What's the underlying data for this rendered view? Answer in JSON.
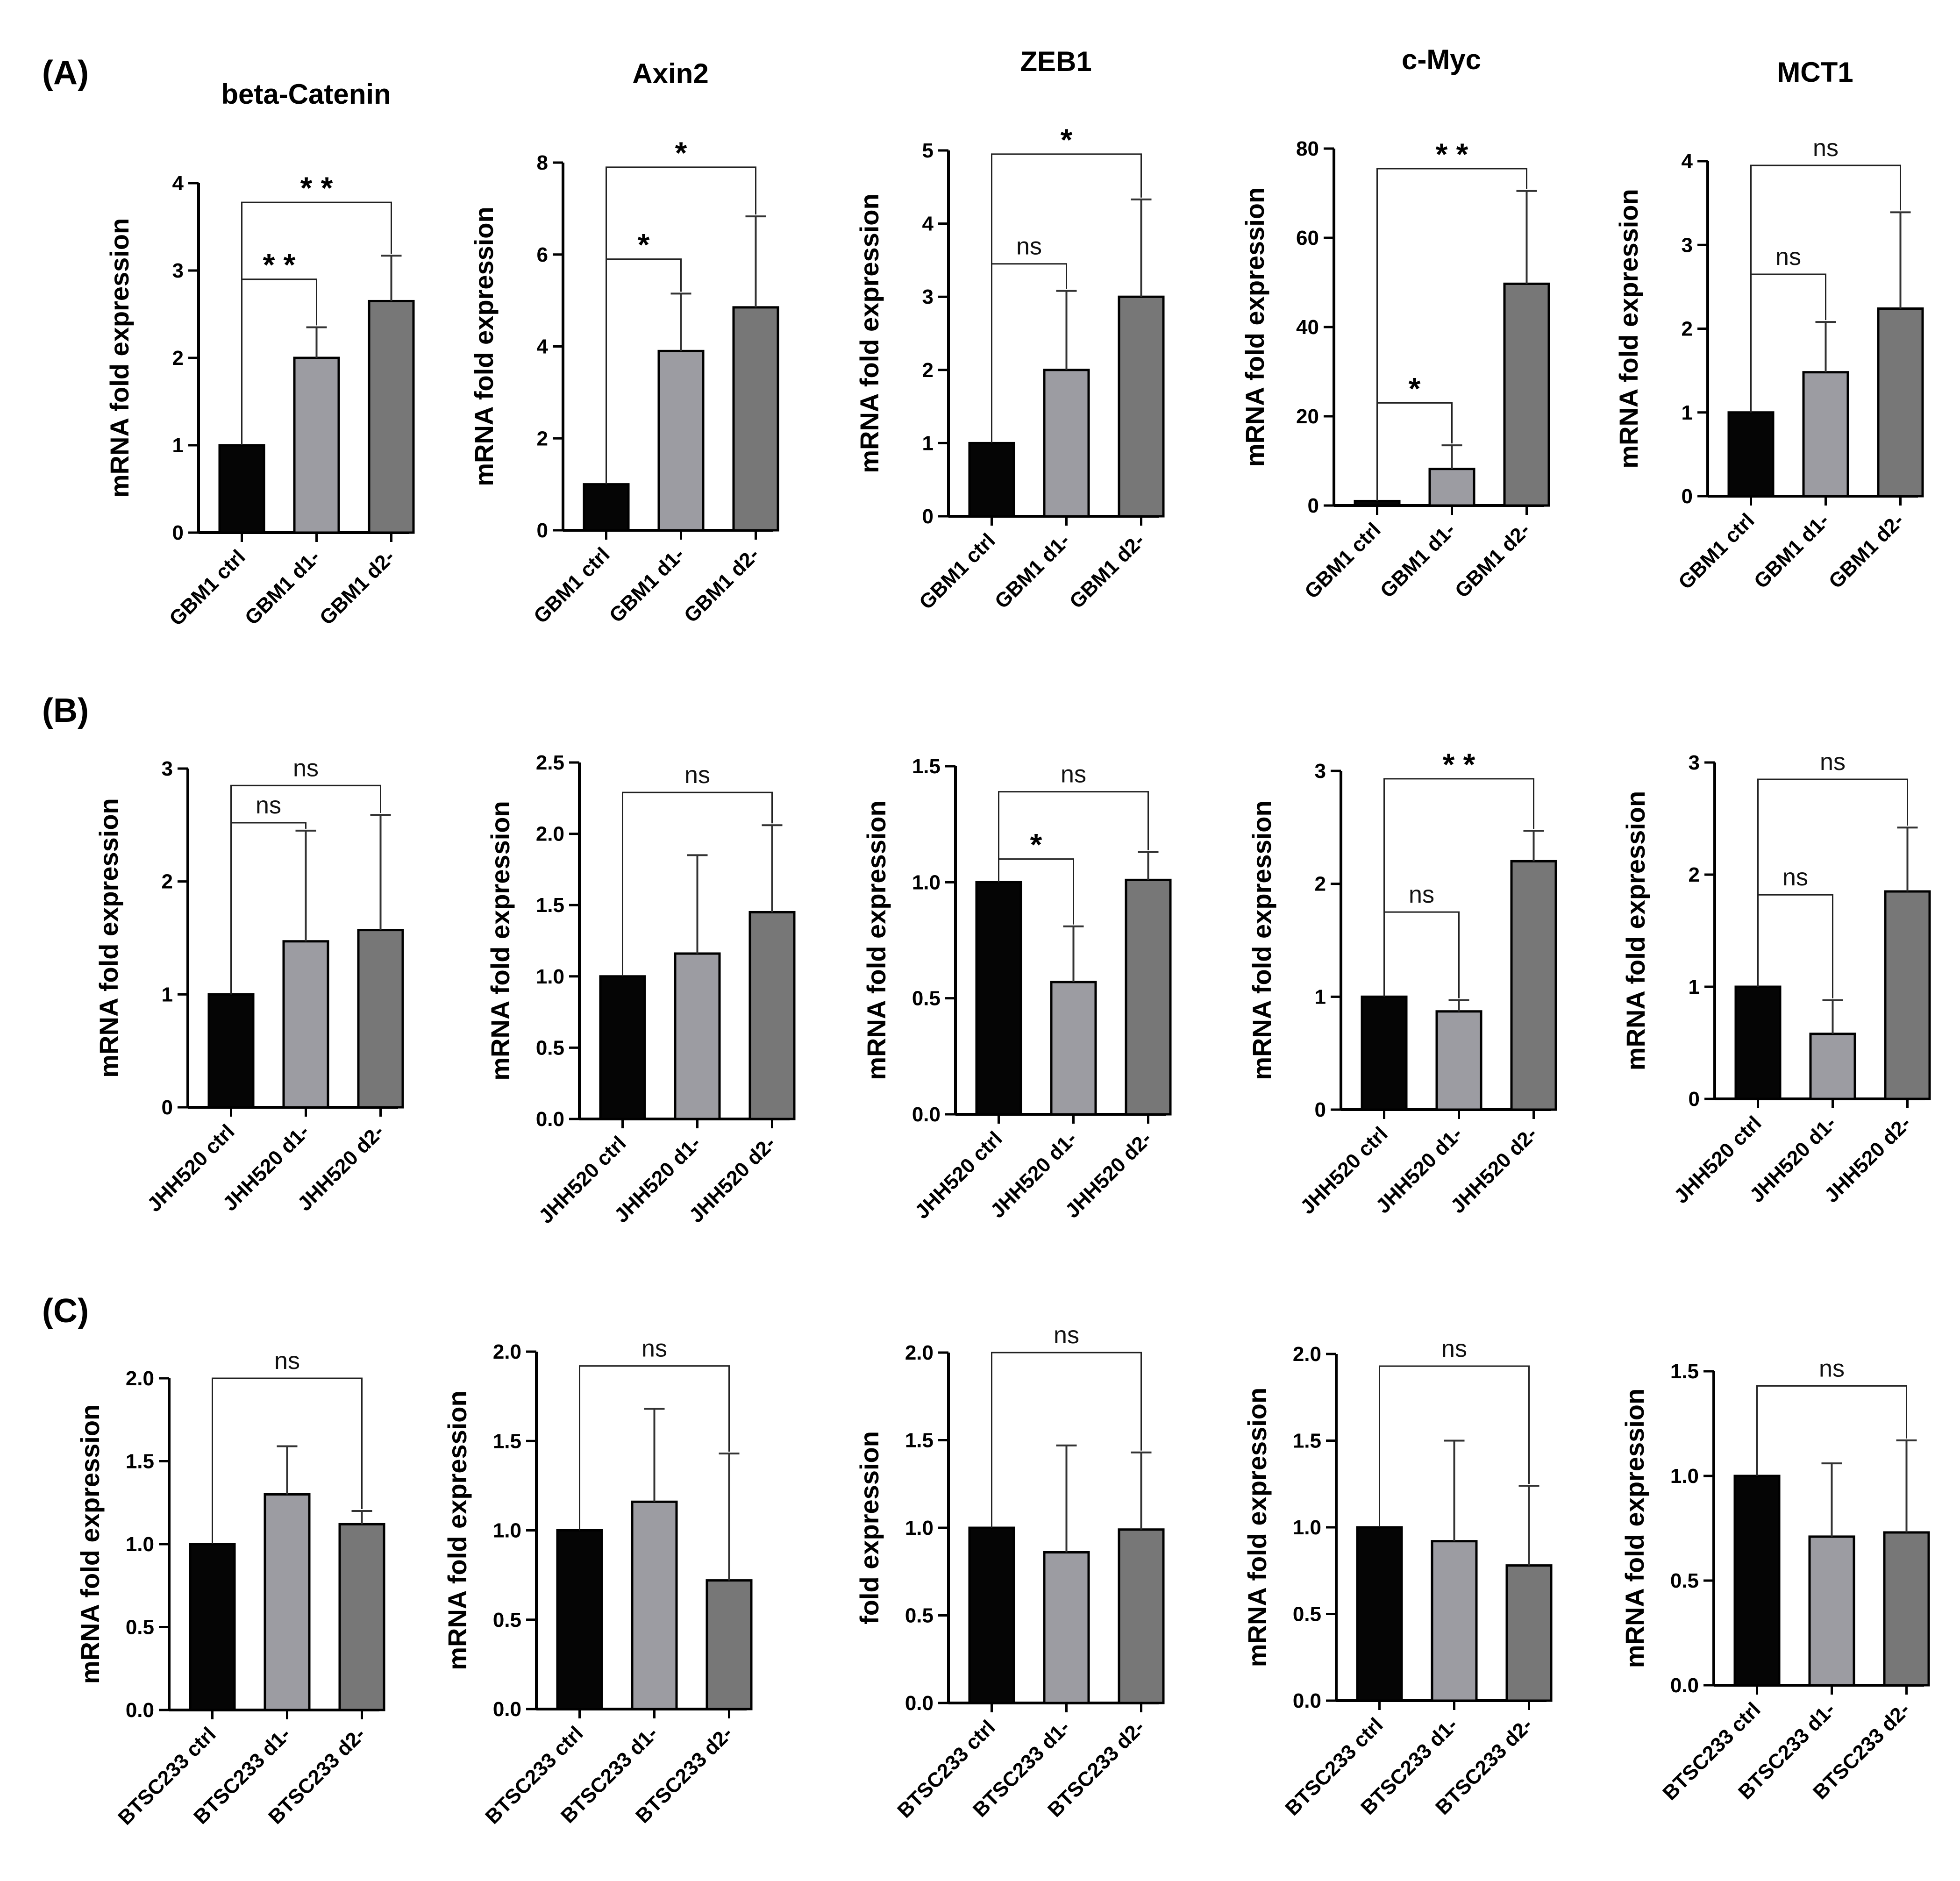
{
  "figure": {
    "panels": [
      {
        "letter": "(A)",
        "cell_line": "GBM1"
      },
      {
        "letter": "(B)",
        "cell_line": "JHH520"
      },
      {
        "letter": "(C)",
        "cell_line": "BTSC233"
      }
    ],
    "bar_colors": [
      "#050505",
      "#9c9ca2",
      "#777777"
    ]
  },
  "chart_data": [
    {
      "type": "bar",
      "panel": "(A)",
      "title": "beta-Catenin",
      "ylabel": "mRNA fold expression",
      "categories": [
        "GBM1 ctrl",
        "GBM1 d1-",
        "GBM1 d2-"
      ],
      "values": [
        1.0,
        2.0,
        2.65
      ],
      "errors": [
        0,
        0.35,
        0.52
      ],
      "ylim": [
        0,
        4
      ],
      "yticks": [
        "0",
        "1",
        "2",
        "3",
        "4"
      ],
      "comparisons": [
        {
          "from": 0,
          "to": 1,
          "label": "**",
          "y": 2.9
        },
        {
          "from": 0,
          "to": 2,
          "label": "**",
          "y": 3.78
        }
      ]
    },
    {
      "type": "bar",
      "panel": "(A)",
      "title": "Axin2",
      "ylabel": "mRNA fold expression",
      "categories": [
        "GBM1 ctrl",
        "GBM1 d1-",
        "GBM1 d2-"
      ],
      "values": [
        1.0,
        3.9,
        4.85
      ],
      "errors": [
        0,
        1.25,
        1.98
      ],
      "ylim": [
        0,
        8
      ],
      "yticks": [
        "0",
        "2",
        "4",
        "6",
        "8"
      ],
      "comparisons": [
        {
          "from": 0,
          "to": 1,
          "label": "*",
          "y": 5.9
        },
        {
          "from": 0,
          "to": 2,
          "label": "*",
          "y": 7.9
        }
      ]
    },
    {
      "type": "bar",
      "panel": "(A)",
      "title": "ZEB1",
      "ylabel": "mRNA fold expression",
      "categories": [
        "GBM1 ctrl",
        "GBM1 d1-",
        "GBM1 d2-"
      ],
      "values": [
        1.0,
        2.0,
        3.0
      ],
      "errors": [
        0,
        1.08,
        1.33
      ],
      "ylim": [
        0,
        5
      ],
      "yticks": [
        "0",
        "1",
        "2",
        "3",
        "4",
        "5"
      ],
      "comparisons": [
        {
          "from": 0,
          "to": 1,
          "label": "ns",
          "y": 3.45
        },
        {
          "from": 0,
          "to": 2,
          "label": "*",
          "y": 4.95
        }
      ]
    },
    {
      "type": "bar",
      "panel": "(A)",
      "title": "c-Myc",
      "ylabel": "mRNA fold expression",
      "categories": [
        "GBM1 ctrl",
        "GBM1 d1-",
        "GBM1 d2-"
      ],
      "values": [
        1.0,
        8.2,
        49.7
      ],
      "errors": [
        0,
        5.3,
        20.8
      ],
      "ylim": [
        0,
        80
      ],
      "yticks": [
        "0",
        "20",
        "40",
        "60",
        "80"
      ],
      "comparisons": [
        {
          "from": 0,
          "to": 1,
          "label": "*",
          "y": 23
        },
        {
          "from": 0,
          "to": 2,
          "label": "**",
          "y": 75.5
        }
      ]
    },
    {
      "type": "bar",
      "panel": "(A)",
      "title": "MCT1",
      "ylabel": "mRNA fold expression",
      "categories": [
        "GBM1 ctrl",
        "GBM1 d1-",
        "GBM1 d2-"
      ],
      "values": [
        1.0,
        1.48,
        2.24
      ],
      "errors": [
        0,
        0.6,
        1.15
      ],
      "ylim": [
        0,
        4
      ],
      "yticks": [
        "0",
        "1",
        "2",
        "3",
        "4"
      ],
      "comparisons": [
        {
          "from": 0,
          "to": 1,
          "label": "ns",
          "y": 2.65
        },
        {
          "from": 0,
          "to": 2,
          "label": "ns",
          "y": 3.95
        }
      ]
    },
    {
      "type": "bar",
      "panel": "(B)",
      "title": "",
      "ylabel": "mRNA fold expression",
      "categories": [
        "JHH520 ctrl",
        "JHH520 d1-",
        "JHH520 d2-"
      ],
      "values": [
        1.0,
        1.47,
        1.57
      ],
      "errors": [
        0,
        0.98,
        1.02
      ],
      "ylim": [
        0,
        3
      ],
      "yticks": [
        "0",
        "1",
        "2",
        "3"
      ],
      "comparisons": [
        {
          "from": 0,
          "to": 1,
          "label": "ns",
          "y": 2.52
        },
        {
          "from": 0,
          "to": 2,
          "label": "ns",
          "y": 2.85
        }
      ]
    },
    {
      "type": "bar",
      "panel": "(B)",
      "title": "",
      "ylabel": "mRNA fold expression",
      "categories": [
        "JHH520 ctrl",
        "JHH520 d1-",
        "JHH520 d2-"
      ],
      "values": [
        1.0,
        1.16,
        1.45
      ],
      "errors": [
        0,
        0.69,
        0.61
      ],
      "ylim": [
        0,
        2.5
      ],
      "yticks": [
        "0.0",
        "0.5",
        "1.0",
        "1.5",
        "2.0",
        "2.5"
      ],
      "comparisons": [
        {
          "from": 0,
          "to": 2,
          "label": "ns",
          "y": 2.29
        }
      ]
    },
    {
      "type": "bar",
      "panel": "(B)",
      "title": "",
      "ylabel": "mRNA fold expression",
      "categories": [
        "JHH520 ctrl",
        "JHH520 d1-",
        "JHH520 d2-"
      ],
      "values": [
        1.0,
        0.57,
        1.01
      ],
      "errors": [
        0,
        0.24,
        0.12
      ],
      "ylim": [
        0,
        1.5
      ],
      "yticks": [
        "0.0",
        "0.5",
        "1.0",
        "1.5"
      ],
      "comparisons": [
        {
          "from": 0,
          "to": 1,
          "label": "*",
          "y": 1.1
        },
        {
          "from": 0,
          "to": 2,
          "label": "ns",
          "y": 1.39
        }
      ]
    },
    {
      "type": "bar",
      "panel": "(B)",
      "title": "",
      "ylabel": "mRNA fold expression",
      "categories": [
        "JHH520 ctrl",
        "JHH520 d1-",
        "JHH520 d2-"
      ],
      "values": [
        1.0,
        0.87,
        2.2
      ],
      "errors": [
        0,
        0.1,
        0.27
      ],
      "ylim": [
        0,
        3
      ],
      "yticks": [
        "0",
        "1",
        "2",
        "3"
      ],
      "comparisons": [
        {
          "from": 0,
          "to": 1,
          "label": "ns",
          "y": 1.75
        },
        {
          "from": 0,
          "to": 2,
          "label": "**",
          "y": 2.93
        }
      ]
    },
    {
      "type": "bar",
      "panel": "(B)",
      "title": "",
      "ylabel": "mRNA fold expression",
      "categories": [
        "JHH520 ctrl",
        "JHH520 d1-",
        "JHH520 d2-"
      ],
      "values": [
        1.0,
        0.58,
        1.85
      ],
      "errors": [
        0,
        0.3,
        0.57
      ],
      "ylim": [
        0,
        3
      ],
      "yticks": [
        "0",
        "1",
        "2",
        "3"
      ],
      "comparisons": [
        {
          "from": 0,
          "to": 1,
          "label": "ns",
          "y": 1.82
        },
        {
          "from": 0,
          "to": 2,
          "label": "ns",
          "y": 2.85
        }
      ]
    },
    {
      "type": "bar",
      "panel": "(C)",
      "title": "",
      "ylabel": "mRNA  fold expression",
      "categories": [
        "BTSC233 ctrl",
        "BTSC233 d1-",
        "BTSC233 d2-"
      ],
      "values": [
        1.0,
        1.3,
        1.12
      ],
      "errors": [
        0,
        0.29,
        0.08
      ],
      "ylim": [
        0,
        2.0
      ],
      "yticks": [
        "0.0",
        "0.5",
        "1.0",
        "1.5",
        "2.0"
      ],
      "comparisons": [
        {
          "from": 0,
          "to": 2,
          "label": "ns",
          "y": 2.0
        }
      ]
    },
    {
      "type": "bar",
      "panel": "(C)",
      "title": "",
      "ylabel": "mRNA fold expression",
      "categories": [
        "BTSC233 ctrl",
        "BTSC233 d1-",
        "BTSC233 d2-"
      ],
      "values": [
        1.0,
        1.16,
        0.72
      ],
      "errors": [
        0,
        0.52,
        0.71
      ],
      "ylim": [
        0,
        2.0
      ],
      "yticks": [
        "0.0",
        "0.5",
        "1.0",
        "1.5",
        "2.0"
      ],
      "comparisons": [
        {
          "from": 0,
          "to": 2,
          "label": "ns",
          "y": 1.92
        }
      ]
    },
    {
      "type": "bar",
      "panel": "(C)",
      "title": "",
      "ylabel": "fold expression",
      "categories": [
        "BTSC233 ctrl",
        "BTSC233 d1-",
        "BTSC233 d2-"
      ],
      "values": [
        1.0,
        0.86,
        0.99
      ],
      "errors": [
        0,
        0.61,
        0.44
      ],
      "ylim": [
        0,
        2.0
      ],
      "yticks": [
        "0.0",
        "0.5",
        "1.0",
        "1.5",
        "2.0"
      ],
      "comparisons": [
        {
          "from": 0,
          "to": 2,
          "label": "ns",
          "y": 2.0
        }
      ]
    },
    {
      "type": "bar",
      "panel": "(C)",
      "title": "",
      "ylabel": "mRNA fold expression",
      "categories": [
        "BTSC233 ctrl",
        "BTSC233 d1-",
        "BTSC233 d2-"
      ],
      "values": [
        1.0,
        0.92,
        0.78
      ],
      "errors": [
        0,
        0.58,
        0.46
      ],
      "ylim": [
        0,
        2.0
      ],
      "yticks": [
        "0.0",
        "0.5",
        "1.0",
        "1.5",
        "2.0"
      ],
      "comparisons": [
        {
          "from": 0,
          "to": 2,
          "label": "ns",
          "y": 1.93
        }
      ]
    },
    {
      "type": "bar",
      "panel": "(C)",
      "title": "",
      "ylabel": "mRNA fold expression",
      "categories": [
        "BTSC233 ctrl",
        "BTSC233 d1-",
        "BTSC233 d2-"
      ],
      "values": [
        1.0,
        0.71,
        0.73
      ],
      "errors": [
        0,
        0.35,
        0.44
      ],
      "ylim": [
        0,
        1.5
      ],
      "yticks": [
        "0.0",
        "0.5",
        "1.0",
        "1.5"
      ],
      "comparisons": [
        {
          "from": 0,
          "to": 2,
          "label": "ns",
          "y": 1.43
        }
      ]
    }
  ]
}
